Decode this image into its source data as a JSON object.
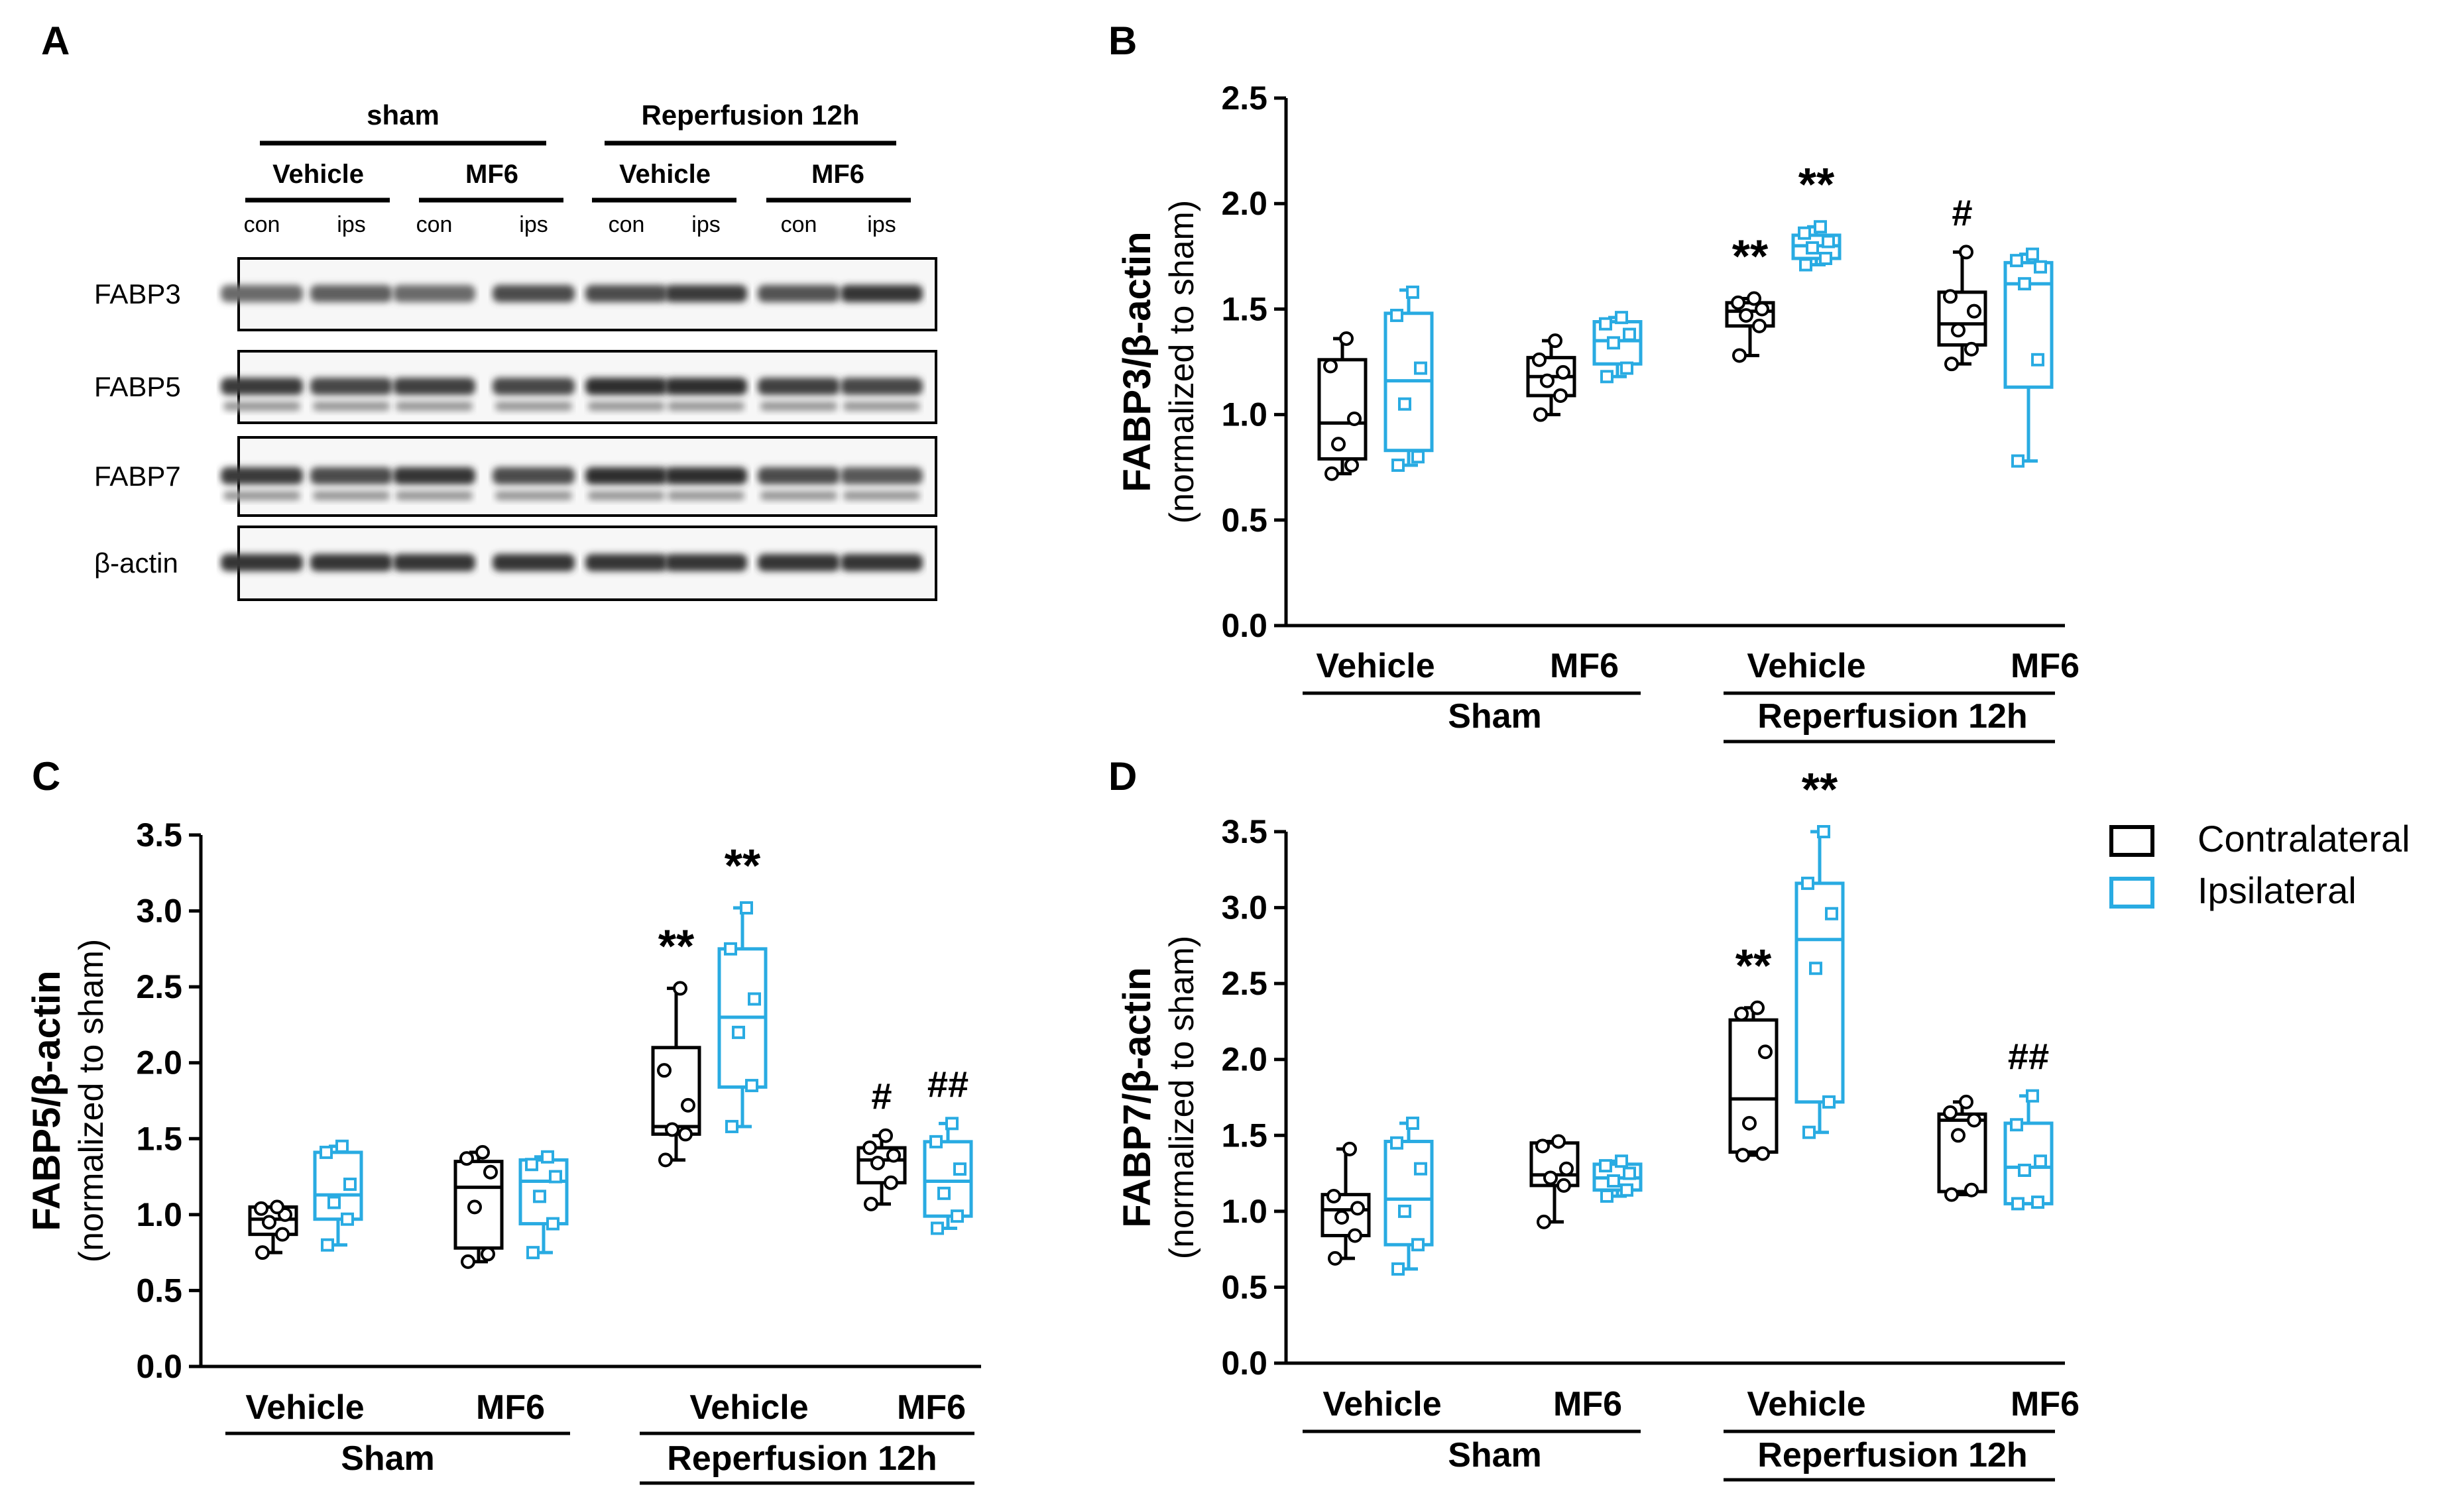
{
  "figure": {
    "panel_labels": {
      "a": "A",
      "b": "B",
      "c": "C",
      "d": "D"
    },
    "colors": {
      "contralateral": "#000000",
      "ipsilateral": "#29abe2"
    }
  },
  "blot": {
    "groups": [
      {
        "label": "sham",
        "subgroups": [
          "Vehicle",
          "MF6"
        ]
      },
      {
        "label": "Reperfusion 12h",
        "subgroups": [
          "Vehicle",
          "MF6"
        ]
      }
    ],
    "lane_labels": [
      "con",
      "ips",
      "con",
      "ips",
      "con",
      "ips",
      "con",
      "ips"
    ],
    "rows": [
      {
        "label": "FABP3"
      },
      {
        "label": "FABP5"
      },
      {
        "label": "FABP7"
      },
      {
        "label": "β-actin"
      }
    ]
  },
  "legend": {
    "items": [
      {
        "label": "Contralateral",
        "color": "#000000"
      },
      {
        "label": "Ipsilateral",
        "color": "#29abe2"
      }
    ]
  },
  "chart_data": [
    {
      "type": "box",
      "panel": "B",
      "title": "",
      "ylabel": [
        "FABP3/β-actin",
        "(normalized to sham)"
      ],
      "ylim": [
        0,
        2.5
      ],
      "yticks": [
        "0.0",
        "0.5",
        "1.0",
        "1.5",
        "2.0",
        "2.5"
      ],
      "categories": [
        "Vehicle",
        "MF6",
        "Vehicle",
        "MF6"
      ],
      "groups": [
        "Sham",
        "Reperfusion 12h"
      ],
      "series": [
        {
          "name": "Contralateral",
          "color": "#000000",
          "boxes": [
            {
              "min": 0.72,
              "q1": 0.79,
              "median": 0.96,
              "q3": 1.26,
              "max": 1.36,
              "points": [
                0.72,
                0.76,
                0.86,
                0.98,
                1.23,
                1.36
              ]
            },
            {
              "min": 1.0,
              "q1": 1.09,
              "median": 1.18,
              "q3": 1.27,
              "max": 1.35,
              "points": [
                1.0,
                1.09,
                1.16,
                1.2,
                1.26,
                1.35
              ]
            },
            {
              "min": 1.28,
              "q1": 1.42,
              "median": 1.49,
              "q3": 1.53,
              "max": 1.55,
              "points": [
                1.28,
                1.42,
                1.47,
                1.5,
                1.53,
                1.55
              ]
            },
            {
              "min": 1.24,
              "q1": 1.33,
              "median": 1.43,
              "q3": 1.58,
              "max": 1.77,
              "points": [
                1.24,
                1.31,
                1.4,
                1.49,
                1.56,
                1.77
              ]
            }
          ],
          "annotations": [
            "",
            "",
            "**",
            "#"
          ]
        },
        {
          "name": "Ipsilateral",
          "color": "#29abe2",
          "boxes": [
            {
              "min": 0.76,
              "q1": 0.83,
              "median": 1.16,
              "q3": 1.48,
              "max": 1.59,
              "points": [
                0.76,
                0.8,
                1.05,
                1.22,
                1.47,
                1.58
              ]
            },
            {
              "min": 1.18,
              "q1": 1.24,
              "median": 1.35,
              "q3": 1.44,
              "max": 1.46,
              "points": [
                1.18,
                1.22,
                1.34,
                1.38,
                1.43,
                1.46
              ]
            },
            {
              "min": 1.71,
              "q1": 1.74,
              "median": 1.8,
              "q3": 1.85,
              "max": 1.89,
              "points": [
                1.71,
                1.74,
                1.79,
                1.82,
                1.86,
                1.89
              ]
            },
            {
              "min": 0.78,
              "q1": 1.13,
              "median": 1.62,
              "q3": 1.72,
              "max": 1.76,
              "points": [
                0.78,
                1.26,
                1.62,
                1.7,
                1.73,
                1.76
              ]
            }
          ],
          "annotations": [
            "",
            "",
            "**",
            ""
          ]
        }
      ]
    },
    {
      "type": "box",
      "panel": "C",
      "title": "",
      "ylabel": [
        "FABP5/β-actin",
        "(normalized to sham)"
      ],
      "ylim": [
        0,
        3.5
      ],
      "yticks": [
        "0.0",
        "0.5",
        "1.0",
        "1.5",
        "2.0",
        "2.5",
        "3.0",
        "3.5"
      ],
      "categories": [
        "Vehicle",
        "MF6",
        "Vehicle",
        "MF6"
      ],
      "groups": [
        "Sham",
        "Reperfusion 12h"
      ],
      "series": [
        {
          "name": "Contralateral",
          "color": "#000000",
          "boxes": [
            {
              "min": 0.75,
              "q1": 0.87,
              "median": 0.97,
              "q3": 1.05,
              "max": 1.05,
              "points": [
                0.75,
                0.87,
                0.95,
                1.0,
                1.04,
                1.05
              ]
            },
            {
              "min": 0.69,
              "q1": 0.78,
              "median": 1.18,
              "q3": 1.35,
              "max": 1.41,
              "points": [
                0.69,
                0.74,
                1.05,
                1.28,
                1.37,
                1.41
              ]
            },
            {
              "min": 1.36,
              "q1": 1.53,
              "median": 1.58,
              "q3": 2.1,
              "max": 2.49,
              "points": [
                1.36,
                1.53,
                1.56,
                1.72,
                1.95,
                2.49
              ]
            },
            {
              "min": 1.07,
              "q1": 1.21,
              "median": 1.36,
              "q3": 1.44,
              "max": 1.52,
              "points": [
                1.07,
                1.21,
                1.34,
                1.39,
                1.44,
                1.52
              ]
            }
          ],
          "annotations": [
            "",
            "",
            "**",
            "#"
          ]
        },
        {
          "name": "Ipsilateral",
          "color": "#29abe2",
          "boxes": [
            {
              "min": 0.8,
              "q1": 0.97,
              "median": 1.13,
              "q3": 1.41,
              "max": 1.45,
              "points": [
                0.8,
                0.97,
                1.08,
                1.2,
                1.41,
                1.45
              ]
            },
            {
              "min": 0.75,
              "q1": 0.94,
              "median": 1.22,
              "q3": 1.36,
              "max": 1.38,
              "points": [
                0.75,
                0.94,
                1.12,
                1.25,
                1.33,
                1.38
              ]
            },
            {
              "min": 1.58,
              "q1": 1.84,
              "median": 2.3,
              "q3": 2.75,
              "max": 3.02,
              "points": [
                1.58,
                1.85,
                2.2,
                2.42,
                2.75,
                3.02
              ]
            },
            {
              "min": 0.91,
              "q1": 0.99,
              "median": 1.22,
              "q3": 1.48,
              "max": 1.6,
              "points": [
                0.91,
                0.99,
                1.14,
                1.3,
                1.48,
                1.6
              ]
            }
          ],
          "annotations": [
            "",
            "",
            "**",
            "##"
          ]
        }
      ]
    },
    {
      "type": "box",
      "panel": "D",
      "title": "",
      "ylabel": [
        "FABP7/β-actin",
        "(normalized to sham)"
      ],
      "ylim": [
        0,
        3.5
      ],
      "yticks": [
        "0.0",
        "0.5",
        "1.0",
        "1.5",
        "2.0",
        "2.5",
        "3.0",
        "3.5"
      ],
      "categories": [
        "Vehicle",
        "MF6",
        "Vehicle",
        "MF6"
      ],
      "groups": [
        "Sham",
        "Reperfusion 12h"
      ],
      "series": [
        {
          "name": "Contralateral",
          "color": "#000000",
          "boxes": [
            {
              "min": 0.69,
              "q1": 0.84,
              "median": 1.01,
              "q3": 1.11,
              "max": 1.41,
              "points": [
                0.69,
                0.84,
                0.96,
                1.02,
                1.1,
                1.41
              ]
            },
            {
              "min": 0.93,
              "q1": 1.17,
              "median": 1.24,
              "q3": 1.45,
              "max": 1.46,
              "points": [
                0.93,
                1.17,
                1.22,
                1.28,
                1.43,
                1.46
              ]
            },
            {
              "min": 1.37,
              "q1": 1.39,
              "median": 1.74,
              "q3": 2.26,
              "max": 2.34,
              "points": [
                1.37,
                1.38,
                1.58,
                2.05,
                2.3,
                2.34
              ]
            },
            {
              "min": 1.11,
              "q1": 1.13,
              "median": 1.6,
              "q3": 1.64,
              "max": 1.72,
              "points": [
                1.11,
                1.14,
                1.5,
                1.6,
                1.65,
                1.72
              ]
            }
          ],
          "annotations": [
            "",
            "",
            "**",
            ""
          ]
        },
        {
          "name": "Ipsilateral",
          "color": "#29abe2",
          "boxes": [
            {
              "min": 0.62,
              "q1": 0.78,
              "median": 1.08,
              "q3": 1.46,
              "max": 1.58,
              "points": [
                0.62,
                0.78,
                1.0,
                1.28,
                1.45,
                1.58
              ]
            },
            {
              "min": 1.1,
              "q1": 1.14,
              "median": 1.22,
              "q3": 1.31,
              "max": 1.33,
              "points": [
                1.1,
                1.14,
                1.2,
                1.25,
                1.3,
                1.33
              ]
            },
            {
              "min": 1.52,
              "q1": 1.72,
              "median": 2.79,
              "q3": 3.16,
              "max": 3.5,
              "points": [
                1.52,
                1.72,
                2.6,
                2.96,
                3.16,
                3.5
              ]
            },
            {
              "min": 1.05,
              "q1": 1.05,
              "median": 1.29,
              "q3": 1.58,
              "max": 1.76,
              "points": [
                1.05,
                1.06,
                1.27,
                1.33,
                1.57,
                1.76
              ]
            }
          ],
          "annotations": [
            "",
            "",
            "**",
            "##"
          ]
        }
      ]
    }
  ]
}
